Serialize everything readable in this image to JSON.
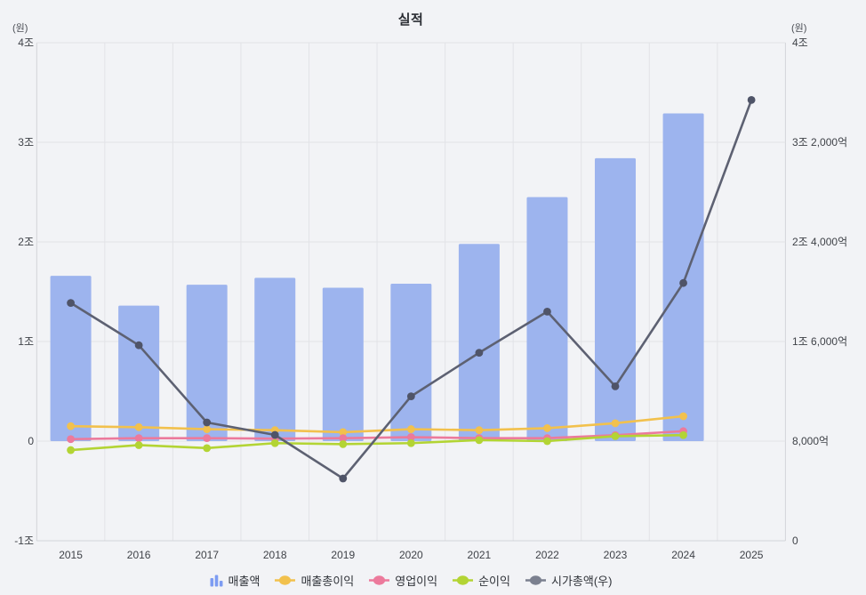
{
  "title": "실적",
  "axes": {
    "left": {
      "unit": "(원)",
      "ticks": [
        "4조",
        "3조",
        "2조",
        "1조",
        "0",
        "-1조"
      ]
    },
    "right": {
      "unit": "(원)",
      "ticks": [
        "4조",
        "3조 2,000억",
        "2조 4,000억",
        "1조 6,000억",
        "8,000억",
        "0"
      ]
    },
    "x": {
      "categories": [
        "2015",
        "2016",
        "2017",
        "2018",
        "2019",
        "2020",
        "2021",
        "2022",
        "2023",
        "2024",
        "2025"
      ]
    }
  },
  "chart_data": {
    "type": "bar",
    "subtype": "combo-bar-line-dual-axis",
    "title": "실적",
    "unit": "조 원 (trillions KRW)",
    "categories": [
      "2015",
      "2016",
      "2017",
      "2018",
      "2019",
      "2020",
      "2021",
      "2022",
      "2023",
      "2024",
      "2025"
    ],
    "ylim_left": [
      -1,
      4
    ],
    "ylim_right": [
      0,
      4
    ],
    "grid": true,
    "legend_position": "bottom",
    "series": [
      {
        "id": "revenue",
        "name": "매출액",
        "type": "bar",
        "axis": "left",
        "values": [
          1.66,
          1.36,
          1.57,
          1.64,
          1.54,
          1.58,
          1.98,
          2.45,
          2.84,
          3.29,
          null
        ]
      },
      {
        "id": "gross_profit",
        "name": "매출총이익",
        "type": "line",
        "axis": "left",
        "values": [
          0.15,
          0.14,
          0.12,
          0.11,
          0.09,
          0.12,
          0.11,
          0.13,
          0.18,
          0.25,
          null
        ]
      },
      {
        "id": "operating_profit",
        "name": "영업이익",
        "type": "line",
        "axis": "left",
        "values": [
          0.02,
          0.03,
          0.03,
          0.025,
          0.03,
          0.04,
          0.03,
          0.03,
          0.06,
          0.1,
          null
        ]
      },
      {
        "id": "net_profit",
        "name": "순이익",
        "type": "line",
        "axis": "left",
        "values": [
          -0.09,
          -0.04,
          -0.07,
          -0.02,
          -0.03,
          -0.02,
          0.01,
          0,
          0.05,
          0.06,
          null
        ]
      },
      {
        "id": "market_cap",
        "name": "시가총액(우)",
        "type": "line",
        "axis": "right",
        "values": [
          1.91,
          1.57,
          0.95,
          0.85,
          0.5,
          1.16,
          1.51,
          1.84,
          1.24,
          2.07,
          3.54
        ]
      }
    ]
  },
  "legend": [
    {
      "id": "revenue",
      "label": "매출액",
      "icon": "bar-chart-icon"
    },
    {
      "id": "gross_profit",
      "label": "매출총이익",
      "icon": "line-dot-icon"
    },
    {
      "id": "operating_profit",
      "label": "영업이익",
      "icon": "line-dot-icon"
    },
    {
      "id": "net_profit",
      "label": "순이익",
      "icon": "line-dot-icon"
    },
    {
      "id": "market_cap",
      "label": "시가총액(우)",
      "icon": "line-dot-icon"
    }
  ],
  "colors": {
    "revenue": "#9db4ee",
    "revenue_icon": "#7d9cf2",
    "gross_profit": "#f2c14d",
    "operating_profit": "#ec7a9c",
    "net_profit": "#b3d434",
    "market_cap": "#5d6172",
    "market_cap_point": "#4f5468",
    "grid": "#e2e3e7",
    "axis_line": "#d2d4d9",
    "text": "#3f4248"
  }
}
